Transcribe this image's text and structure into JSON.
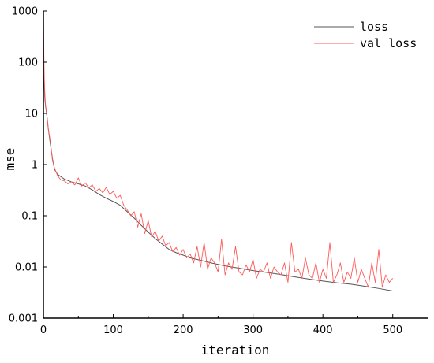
{
  "chart_data": {
    "type": "line",
    "title": "",
    "xlabel": "iteration",
    "ylabel": "mse",
    "xlim": [
      0,
      550
    ],
    "ylim": [
      0.001,
      1000
    ],
    "yscale": "log",
    "grid": false,
    "legend_position": "top-right",
    "x_ticks": [
      {
        "value": 0,
        "label": "0"
      },
      {
        "value": 100,
        "label": "100"
      },
      {
        "value": 200,
        "label": "200"
      },
      {
        "value": 300,
        "label": "300"
      },
      {
        "value": 400,
        "label": "400"
      },
      {
        "value": 500,
        "label": "500"
      }
    ],
    "y_ticks": [
      {
        "value": 1000,
        "label": "1000"
      },
      {
        "value": 100,
        "label": "100"
      },
      {
        "value": 10,
        "label": "10"
      },
      {
        "value": 1,
        "label": "1"
      },
      {
        "value": 0.1,
        "label": "0.1"
      },
      {
        "value": 0.01,
        "label": "0.01"
      },
      {
        "value": 0.001,
        "label": "0.001"
      }
    ],
    "series": [
      {
        "name": "loss",
        "color": "#555555",
        "x": [
          0,
          1,
          2,
          3,
          5,
          7,
          10,
          13,
          16,
          20,
          25,
          30,
          40,
          50,
          60,
          70,
          80,
          90,
          100,
          110,
          120,
          130,
          140,
          150,
          160,
          170,
          180,
          190,
          200,
          210,
          220,
          230,
          240,
          250,
          260,
          280,
          300,
          320,
          340,
          360,
          380,
          400,
          420,
          440,
          460,
          480,
          500
        ],
        "y": [
          300,
          40,
          20,
          14,
          9,
          5,
          2.5,
          1.3,
          0.8,
          0.65,
          0.58,
          0.52,
          0.46,
          0.42,
          0.38,
          0.32,
          0.26,
          0.22,
          0.19,
          0.16,
          0.12,
          0.09,
          0.065,
          0.048,
          0.036,
          0.028,
          0.022,
          0.019,
          0.017,
          0.015,
          0.014,
          0.013,
          0.012,
          0.0112,
          0.0105,
          0.0095,
          0.0085,
          0.0078,
          0.0071,
          0.0064,
          0.0058,
          0.0053,
          0.0049,
          0.0046,
          0.0042,
          0.0038,
          0.0034
        ]
      },
      {
        "name": "val_loss",
        "color": "#ff5a5a",
        "x": [
          0,
          1,
          2,
          3,
          5,
          7,
          10,
          13,
          16,
          20,
          25,
          30,
          35,
          40,
          45,
          50,
          55,
          60,
          65,
          70,
          75,
          80,
          85,
          90,
          95,
          100,
          105,
          110,
          115,
          120,
          125,
          130,
          135,
          140,
          145,
          150,
          155,
          160,
          165,
          170,
          175,
          180,
          185,
          190,
          195,
          200,
          205,
          210,
          215,
          220,
          225,
          230,
          235,
          240,
          245,
          250,
          255,
          260,
          265,
          270,
          275,
          280,
          285,
          290,
          295,
          300,
          305,
          310,
          315,
          320,
          325,
          330,
          335,
          340,
          345,
          350,
          355,
          360,
          365,
          370,
          375,
          380,
          385,
          390,
          395,
          400,
          405,
          410,
          415,
          420,
          425,
          430,
          435,
          440,
          445,
          450,
          455,
          460,
          465,
          470,
          475,
          480,
          485,
          490,
          495,
          500
        ],
        "y": [
          900,
          60,
          25,
          15,
          9,
          5,
          2.8,
          1.2,
          0.85,
          0.62,
          0.5,
          0.48,
          0.42,
          0.46,
          0.4,
          0.55,
          0.38,
          0.44,
          0.35,
          0.4,
          0.3,
          0.34,
          0.28,
          0.36,
          0.26,
          0.3,
          0.22,
          0.25,
          0.16,
          0.13,
          0.1,
          0.12,
          0.06,
          0.11,
          0.045,
          0.08,
          0.038,
          0.05,
          0.032,
          0.04,
          0.026,
          0.03,
          0.02,
          0.024,
          0.017,
          0.022,
          0.015,
          0.018,
          0.012,
          0.025,
          0.01,
          0.03,
          0.009,
          0.015,
          0.012,
          0.008,
          0.035,
          0.007,
          0.012,
          0.009,
          0.025,
          0.008,
          0.007,
          0.011,
          0.008,
          0.014,
          0.006,
          0.009,
          0.008,
          0.012,
          0.006,
          0.01,
          0.008,
          0.007,
          0.012,
          0.005,
          0.03,
          0.008,
          0.009,
          0.006,
          0.015,
          0.007,
          0.006,
          0.012,
          0.005,
          0.009,
          0.006,
          0.03,
          0.005,
          0.007,
          0.012,
          0.005,
          0.008,
          0.006,
          0.015,
          0.005,
          0.009,
          0.006,
          0.004,
          0.012,
          0.005,
          0.022,
          0.004,
          0.007,
          0.005,
          0.006
        ]
      }
    ]
  }
}
